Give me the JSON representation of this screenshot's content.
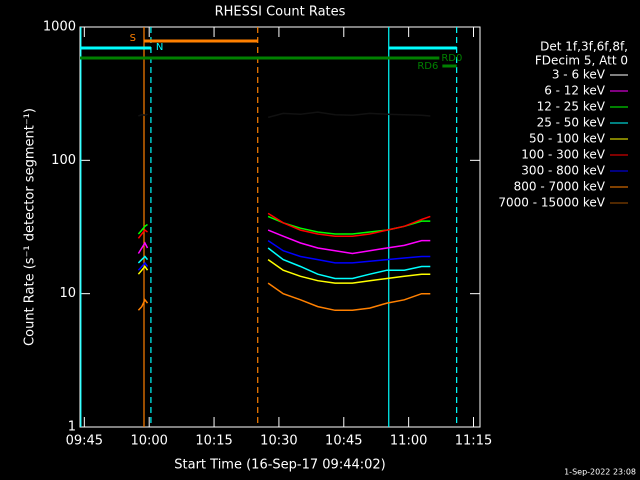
{
  "chart_data": {
    "type": "line",
    "title": "RHESSI Count Rates",
    "x_label": "Start Time (16-Sep-17 09:44:02)",
    "y_label": "Count Rate (s⁻¹ detector segment⁻¹)",
    "legend_header": [
      "Det 1f,3f,6f,8f,",
      "FDecim 5, Att 0"
    ],
    "footer": "1-Sep-2022 23:08",
    "log_y": true,
    "xlim": [
      584,
      676.5
    ],
    "ylim": [
      1,
      1000
    ],
    "xticks": [
      {
        "value": 585,
        "label": "09:45"
      },
      {
        "value": 600,
        "label": "10:00"
      },
      {
        "value": 615,
        "label": "10:15"
      },
      {
        "value": 630,
        "label": "10:30"
      },
      {
        "value": 645,
        "label": "10:45"
      },
      {
        "value": 660,
        "label": "11:00"
      },
      {
        "value": 675,
        "label": "11:15"
      }
    ],
    "yticks": [
      1,
      10,
      100,
      1000
    ],
    "x": [
      597.5,
      598.3,
      599,
      599.6,
      612,
      627.5,
      631,
      635,
      639,
      643,
      647,
      651,
      655,
      659,
      663,
      665
    ],
    "series": [
      {
        "name": "3 - 6 keV",
        "color": "#000000",
        "values": [
          215,
          220,
          218,
          222,
          null,
          210,
          225,
          222,
          230,
          220,
          218,
          225,
          222,
          220,
          218,
          215
        ]
      },
      {
        "name": "6 - 12 keV",
        "color": "#ff00ff",
        "values": [
          20,
          22,
          24,
          22,
          null,
          30,
          27,
          24,
          22,
          21,
          20,
          21,
          22,
          23,
          25,
          25
        ]
      },
      {
        "name": "12 - 25 keV",
        "color": "#00ff00",
        "values": [
          28,
          30,
          32,
          33,
          null,
          38,
          34,
          31,
          29,
          28,
          28,
          29,
          30,
          32,
          35,
          35
        ]
      },
      {
        "name": "25 - 50 keV",
        "color": "#00ffff",
        "values": [
          17,
          18,
          19,
          18,
          null,
          22,
          18,
          16,
          14,
          13,
          13,
          14,
          15,
          15,
          16,
          16
        ]
      },
      {
        "name": "50 - 100 keV",
        "color": "#ffff00",
        "values": [
          14,
          15,
          16,
          15,
          null,
          18,
          15,
          13.5,
          12.5,
          12,
          12,
          12.5,
          13,
          13.5,
          14,
          14
        ]
      },
      {
        "name": "100 - 300 keV",
        "color": "#ff0000",
        "values": [
          26,
          28,
          30,
          29,
          null,
          40,
          34,
          30,
          28,
          27,
          27,
          28,
          30,
          32,
          36,
          38
        ]
      },
      {
        "name": "300 - 800 keV",
        "color": "#0000ff",
        "values": [
          15,
          16,
          17,
          16,
          null,
          25,
          21,
          19,
          18,
          17,
          17,
          17.5,
          18,
          18.5,
          19,
          19
        ]
      },
      {
        "name": "800 - 7000 keV",
        "color": "#ff8000",
        "values": [
          7.5,
          8,
          9,
          8.5,
          null,
          12,
          10,
          9,
          8,
          7.5,
          7.5,
          7.8,
          8.5,
          9,
          10,
          10
        ]
      },
      {
        "name": "7000 - 15000 keV",
        "color": "#a05000",
        "values": [
          null,
          null,
          null,
          null,
          null,
          null,
          null,
          null,
          null,
          null,
          null,
          null,
          null,
          null,
          null,
          null
        ]
      }
    ],
    "vlines": [
      {
        "x": 584.2,
        "color": "#00ffff",
        "dashed": false
      },
      {
        "x": 598.8,
        "color": "#ff8000",
        "dashed": false
      },
      {
        "x": 600.4,
        "color": "#00ffff",
        "dashed": true
      },
      {
        "x": 625.1,
        "color": "#ff8000",
        "dashed": true
      },
      {
        "x": 655.4,
        "color": "#00ffff",
        "dashed": false
      },
      {
        "x": 671.1,
        "color": "#00ffff",
        "dashed": true
      }
    ],
    "flags": [
      {
        "label": "S",
        "color": "#ff8000",
        "segments": [
          [
            598.8,
            625.1
          ]
        ]
      },
      {
        "label": "N",
        "color": "#00ffff",
        "segments": [
          [
            584,
            600.4
          ],
          [
            655.4,
            671.1
          ]
        ]
      },
      {
        "label": "RD0",
        "color": "#008000",
        "segments": [
          [
            584,
            667.1
          ]
        ]
      },
      {
        "label": "RD6",
        "color": "#008000",
        "segments": [
          [
            667.8,
            671.1
          ]
        ]
      }
    ]
  }
}
